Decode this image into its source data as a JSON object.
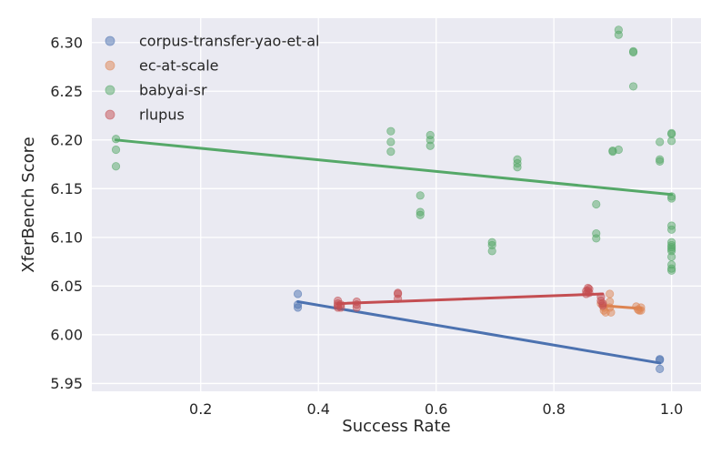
{
  "chart_data": {
    "type": "scatter",
    "xlabel": "Success Rate",
    "ylabel": "XferBench Score",
    "xlim": [
      0.015,
      1.05
    ],
    "ylim": [
      5.942,
      6.325
    ],
    "xticks": [
      0.2,
      0.4,
      0.6,
      0.8,
      1.0
    ],
    "xtick_labels": [
      "0.2",
      "0.4",
      "0.6",
      "0.8",
      "1.0"
    ],
    "yticks": [
      5.95,
      6.0,
      6.05,
      6.1,
      6.15,
      6.2,
      6.25,
      6.3
    ],
    "ytick_labels": [
      "5.95",
      "6.00",
      "6.05",
      "6.10",
      "6.15",
      "6.20",
      "6.25",
      "6.30"
    ],
    "grid": true,
    "legend_position": "top-left",
    "background": "#eaeaf2",
    "series": [
      {
        "name": "corpus-transfer-yao-et-al",
        "color": "#4c72b0",
        "points": [
          [
            0.365,
            6.042
          ],
          [
            0.365,
            6.031
          ],
          [
            0.365,
            6.028
          ],
          [
            0.98,
            5.975
          ],
          [
            0.98,
            5.974
          ],
          [
            0.98,
            5.965
          ]
        ],
        "fit": [
          [
            0.365,
            6.034
          ],
          [
            0.98,
            5.971
          ]
        ]
      },
      {
        "name": "ec-at-scale",
        "color": "#dd8452",
        "points": [
          [
            0.88,
            6.032
          ],
          [
            0.885,
            6.028
          ],
          [
            0.885,
            6.025
          ],
          [
            0.888,
            6.023
          ],
          [
            0.895,
            6.042
          ],
          [
            0.895,
            6.034
          ],
          [
            0.895,
            6.028
          ],
          [
            0.897,
            6.023
          ],
          [
            0.94,
            6.029
          ],
          [
            0.943,
            6.026
          ],
          [
            0.945,
            6.025
          ],
          [
            0.948,
            6.028
          ],
          [
            0.948,
            6.025
          ]
        ],
        "fit": [
          [
            0.88,
            6.03
          ],
          [
            0.948,
            6.027
          ]
        ]
      },
      {
        "name": "babyai-sr",
        "color": "#55a868",
        "points": [
          [
            0.056,
            6.201
          ],
          [
            0.056,
            6.19
          ],
          [
            0.056,
            6.173
          ],
          [
            0.523,
            6.209
          ],
          [
            0.523,
            6.198
          ],
          [
            0.523,
            6.188
          ],
          [
            0.573,
            6.143
          ],
          [
            0.573,
            6.126
          ],
          [
            0.573,
            6.123
          ],
          [
            0.59,
            6.205
          ],
          [
            0.59,
            6.2
          ],
          [
            0.59,
            6.194
          ],
          [
            0.695,
            6.095
          ],
          [
            0.695,
            6.092
          ],
          [
            0.695,
            6.086
          ],
          [
            0.738,
            6.18
          ],
          [
            0.738,
            6.176
          ],
          [
            0.738,
            6.172
          ],
          [
            0.872,
            6.134
          ],
          [
            0.872,
            6.104
          ],
          [
            0.872,
            6.099
          ],
          [
            0.9,
            6.189
          ],
          [
            0.9,
            6.188
          ],
          [
            0.91,
            6.19
          ],
          [
            0.91,
            6.313
          ],
          [
            0.91,
            6.308
          ],
          [
            0.935,
            6.291
          ],
          [
            0.935,
            6.29
          ],
          [
            0.935,
            6.255
          ],
          [
            0.98,
            6.198
          ],
          [
            0.98,
            6.18
          ],
          [
            0.98,
            6.178
          ],
          [
            1.0,
            6.207
          ],
          [
            1.0,
            6.206
          ],
          [
            1.0,
            6.199
          ],
          [
            1.0,
            6.142
          ],
          [
            1.0,
            6.14
          ],
          [
            1.0,
            6.112
          ],
          [
            1.0,
            6.108
          ],
          [
            1.0,
            6.095
          ],
          [
            1.0,
            6.092
          ],
          [
            1.0,
            6.09
          ],
          [
            1.0,
            6.088
          ],
          [
            1.0,
            6.086
          ],
          [
            1.0,
            6.08
          ],
          [
            1.0,
            6.072
          ],
          [
            1.0,
            6.068
          ],
          [
            1.0,
            6.066
          ]
        ],
        "fit": [
          [
            0.056,
            6.2
          ],
          [
            1.0,
            6.144
          ]
        ]
      },
      {
        "name": "rlupus",
        "color": "#c44e52",
        "points": [
          [
            0.433,
            6.035
          ],
          [
            0.433,
            6.032
          ],
          [
            0.433,
            6.03
          ],
          [
            0.433,
            6.028
          ],
          [
            0.438,
            6.031
          ],
          [
            0.438,
            6.028
          ],
          [
            0.465,
            6.034
          ],
          [
            0.465,
            6.031
          ],
          [
            0.465,
            6.028
          ],
          [
            0.535,
            6.043
          ],
          [
            0.535,
            6.042
          ],
          [
            0.535,
            6.037
          ],
          [
            0.855,
            6.045
          ],
          [
            0.855,
            6.042
          ],
          [
            0.858,
            6.048
          ],
          [
            0.858,
            6.045
          ],
          [
            0.86,
            6.047
          ],
          [
            0.86,
            6.043
          ],
          [
            0.88,
            6.039
          ],
          [
            0.88,
            6.035
          ],
          [
            0.883,
            6.032
          ],
          [
            0.883,
            6.03
          ]
        ],
        "fit": [
          [
            0.433,
            6.032
          ],
          [
            0.883,
            6.042
          ]
        ]
      }
    ]
  }
}
